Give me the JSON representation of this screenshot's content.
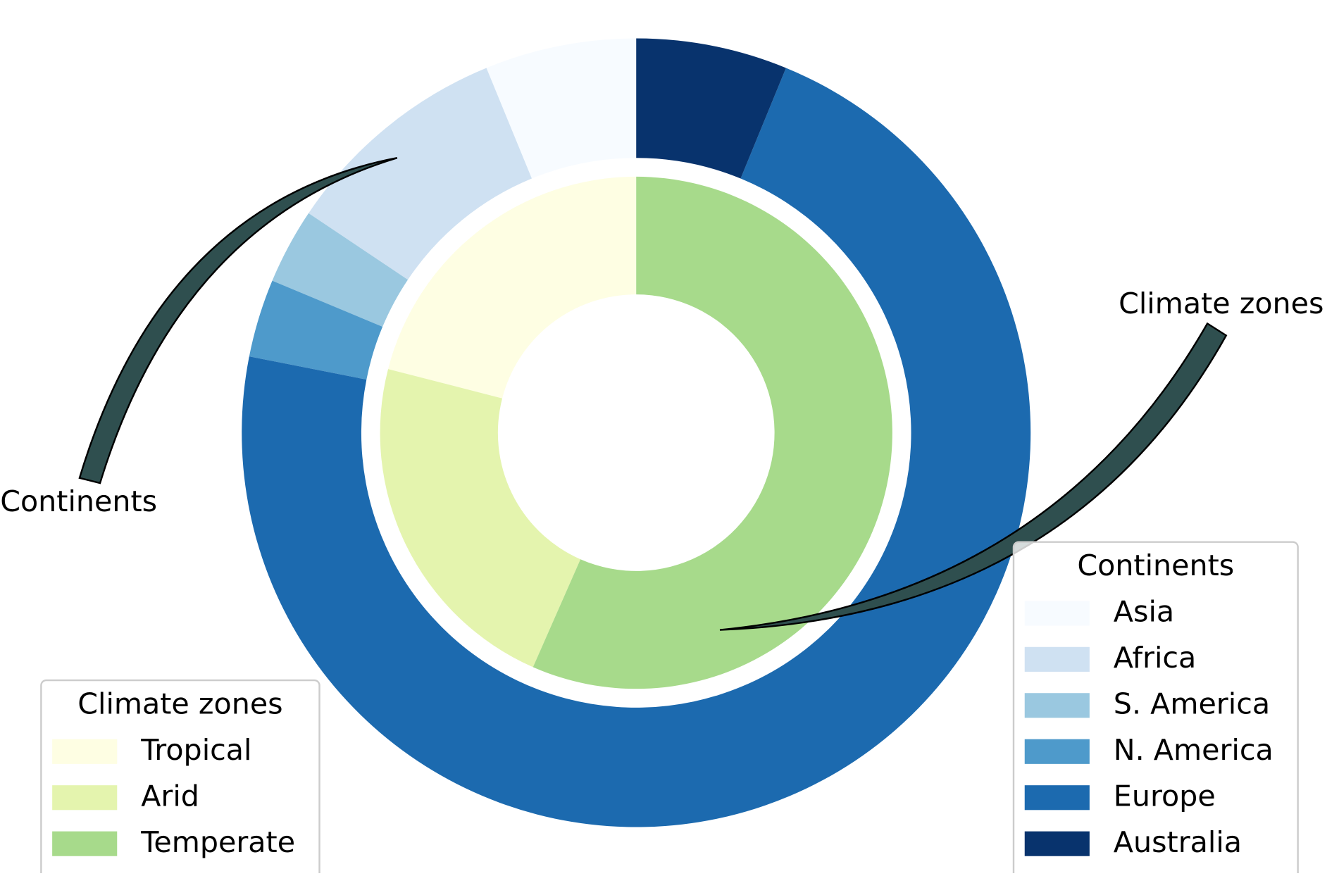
{
  "chart_data": [
    {
      "type": "pie",
      "annotation": "Continents",
      "legend_title": "Continents",
      "legend": "lower right",
      "categories": [
        "Asia",
        "Africa",
        "S. America",
        "N. America",
        "Europe",
        "Australia"
      ],
      "values": [
        6.2,
        9.4,
        3.1,
        3.2,
        71.9,
        6.2
      ],
      "colors": [
        "#f7fbff",
        "#cfe1f2",
        "#9ac8e0",
        "#4e9acb",
        "#1c6aaf",
        "#08336d"
      ]
    },
    {
      "type": "pie",
      "annotation": "Climate zones",
      "legend_title": "Climate zones",
      "legend": "lower left",
      "categories": [
        "Tropical",
        "Arid",
        "Temperate"
      ],
      "values": [
        21,
        22.4,
        56.6
      ],
      "colors": [
        "#fefee3",
        "#e4f4ae",
        "#a7da8b"
      ]
    }
  ]
}
